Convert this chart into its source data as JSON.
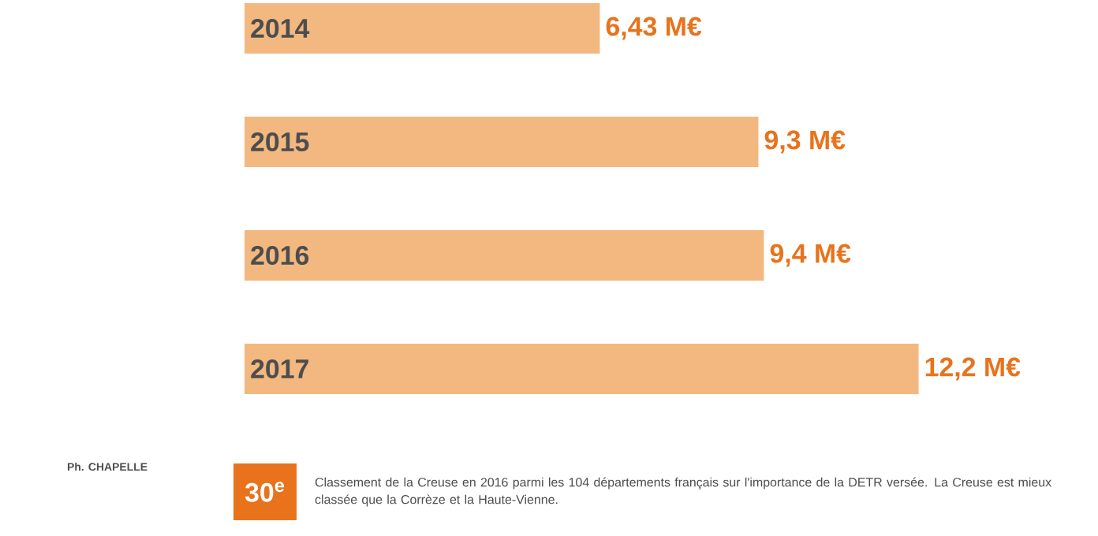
{
  "chart_data": {
    "type": "bar",
    "orientation": "horizontal",
    "categories": [
      "2014",
      "2015",
      "2016",
      "2017"
    ],
    "values": [
      6.43,
      9.3,
      9.4,
      12.2
    ],
    "value_labels": [
      "6,43 M€",
      "9,3 M€",
      "9,4 M€",
      "12,2 M€"
    ],
    "color": "#f2b880",
    "annotations": [
      "Ph. CHAPELLE",
      "30$^{e}$",
      "Classement de la Creuse en 2016 parmi les 104 départements français sur l'importance de la DETR versée. La Creuse est mieux classée que la Corrèze et la Haute-Vienne."
    ]
  }
}
